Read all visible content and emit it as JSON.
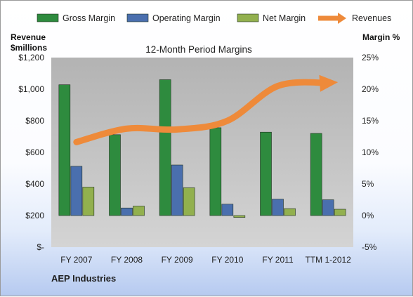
{
  "chart_data": {
    "type": "bar",
    "title": "12-Month Period Margins",
    "company": "AEP Industries",
    "categories": [
      "FY 2007",
      "FY 2008",
      "FY 2009",
      "FY 2010",
      "FY 2011",
      "TTM 1-2012"
    ],
    "series": [
      {
        "name": "Gross Margin",
        "axis": "right",
        "color": "#2e8b3e",
        "values": [
          20.7,
          12.8,
          21.5,
          13.9,
          13.2,
          13.0
        ]
      },
      {
        "name": "Operating Margin",
        "axis": "right",
        "color": "#4a6fae",
        "values": [
          7.8,
          1.2,
          8.0,
          1.8,
          2.6,
          2.5
        ]
      },
      {
        "name": "Net Margin",
        "axis": "right",
        "color": "#92b04e",
        "values": [
          4.5,
          1.5,
          4.4,
          -0.3,
          1.1,
          1.0
        ]
      },
      {
        "name": "Revenues",
        "axis": "left",
        "type": "line",
        "color": "#ee8a3a",
        "values": [
          665,
          750,
          745,
          800,
          1020,
          1040
        ]
      }
    ],
    "y_left": {
      "label_lines": [
        "Revenue",
        "$millions"
      ],
      "ylim": [
        0,
        1200
      ],
      "ticks": [
        0,
        200,
        400,
        600,
        800,
        1000,
        1200
      ],
      "tick_labels": [
        "$-",
        "$200",
        "$400",
        "$600",
        "$800",
        "$1,000",
        "$1,200"
      ]
    },
    "y_right": {
      "label": "Margin %",
      "ylim": [
        -5,
        25
      ],
      "ticks": [
        -5,
        0,
        5,
        10,
        15,
        20,
        25
      ],
      "tick_labels": [
        "-5%",
        "0%",
        "5%",
        "10%",
        "15%",
        "20%",
        "25%"
      ]
    },
    "legend_position": "top",
    "grid": false
  }
}
